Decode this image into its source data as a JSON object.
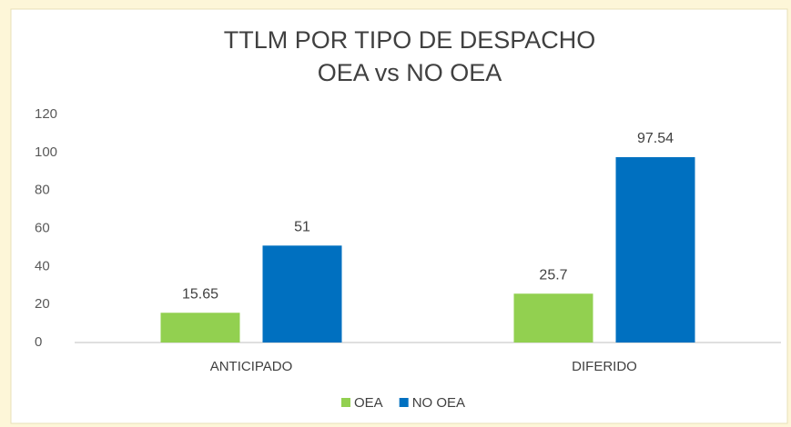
{
  "chart_data": {
    "type": "bar",
    "title": "TTLM POR TIPO DE DESPACHO",
    "subtitle": "OEA vs NO OEA",
    "categories": [
      "ANTICIPADO",
      "DIFERIDO"
    ],
    "series": [
      {
        "name": "OEA",
        "color": "#92d050",
        "values": [
          15.65,
          25.7
        ]
      },
      {
        "name": "NO OEA",
        "color": "#0070c0",
        "values": [
          51,
          97.54
        ]
      }
    ],
    "ylim": [
      0,
      120
    ],
    "yticks": [
      0,
      20,
      40,
      60,
      80,
      100,
      120
    ],
    "grid": false,
    "legend": "bottom"
  }
}
